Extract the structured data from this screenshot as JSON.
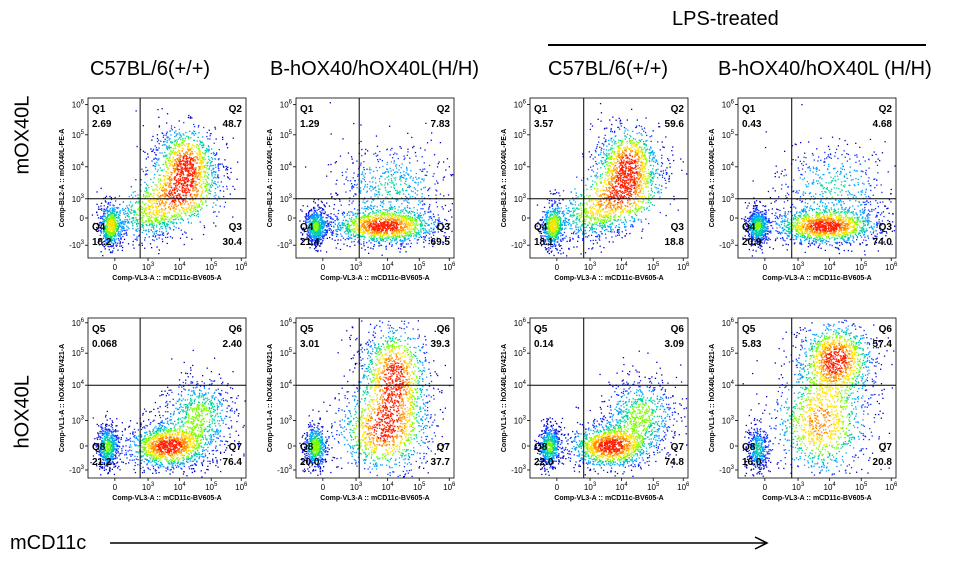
{
  "column_headers": [
    "C57BL/6(+/+)",
    "B-hOX40/hOX40L(H/H)",
    "C57BL/6(+/+)",
    "B-hOX40/hOX40L (H/H)"
  ],
  "group_label": "LPS-treated",
  "row_labels": [
    "mOX40L",
    "hOX40L"
  ],
  "bottom_axis_label": "mCD11c",
  "chart_data": [
    {
      "type": "scatter",
      "row": 0,
      "col": 0,
      "xlabel": "Comp-VL3-A :: mCD11c-BV605-A",
      "ylabel": "Comp-BL2-A :: mOX40L-PE-A",
      "quadrants": [
        {
          "name": "Q1",
          "value": "2.69"
        },
        {
          "name": "Q2",
          "value": "48.7"
        },
        {
          "name": "Q3",
          "value": "30.4"
        },
        {
          "name": "Q4",
          "value": "18.2"
        }
      ],
      "x_ticks": [
        "0",
        "10",
        "10",
        "10",
        "10"
      ],
      "x_tick_exp": [
        "",
        "3",
        "4",
        "5",
        "6"
      ],
      "y_ticks": [
        "-10",
        "0",
        "10",
        "10",
        "10",
        "10"
      ],
      "y_tick_exp": [
        "3",
        "",
        "3",
        "4",
        "5",
        "6"
      ],
      "population": "diagonal"
    },
    {
      "type": "scatter",
      "row": 0,
      "col": 1,
      "xlabel": "Comp-VL3-A :: mCD11c-BV605-A",
      "ylabel": "Comp-BL2-A :: mOX40L-PE-A",
      "quadrants": [
        {
          "name": "Q1",
          "value": "1.29"
        },
        {
          "name": "Q2",
          "value": "7.83"
        },
        {
          "name": "Q3",
          "value": "69.5"
        },
        {
          "name": "Q4",
          "value": "21.4"
        }
      ],
      "x_ticks": [
        "0",
        "10",
        "10",
        "10",
        "10"
      ],
      "x_tick_exp": [
        "",
        "3",
        "4",
        "5",
        "6"
      ],
      "y_ticks": [
        "-10",
        "0",
        "10",
        "10",
        "10",
        "10"
      ],
      "y_tick_exp": [
        "3",
        "",
        "3",
        "4",
        "5",
        "6"
      ],
      "population": "horizontal"
    },
    {
      "type": "scatter",
      "row": 0,
      "col": 2,
      "xlabel": "Comp-VL3-A :: mCD11c-BV605-A",
      "ylabel": "Comp-BL2-A :: mOX40L-PE-A",
      "quadrants": [
        {
          "name": "Q1",
          "value": "3.57"
        },
        {
          "name": "Q2",
          "value": "59.6"
        },
        {
          "name": "Q3",
          "value": "18.8"
        },
        {
          "name": "Q4",
          "value": "18.1"
        }
      ],
      "x_ticks": [
        "0",
        "10",
        "10",
        "10",
        "10"
      ],
      "x_tick_exp": [
        "",
        "3",
        "4",
        "5",
        "6"
      ],
      "y_ticks": [
        "-10",
        "0",
        "10",
        "10",
        "10",
        "10"
      ],
      "y_tick_exp": [
        "3",
        "",
        "3",
        "4",
        "5",
        "6"
      ],
      "population": "diagonal"
    },
    {
      "type": "scatter",
      "row": 0,
      "col": 3,
      "xlabel": "Comp-VL3-A :: mCD11c-BV605-A",
      "ylabel": "Comp-BL2-A :: mOX40L-PE-A",
      "quadrants": [
        {
          "name": "Q1",
          "value": "0.43"
        },
        {
          "name": "Q2",
          "value": "4.68"
        },
        {
          "name": "Q3",
          "value": "74.0"
        },
        {
          "name": "Q4",
          "value": "20.9"
        }
      ],
      "x_ticks": [
        "0",
        "10",
        "10",
        "10",
        "10"
      ],
      "x_tick_exp": [
        "",
        "3",
        "4",
        "5",
        "6"
      ],
      "y_ticks": [
        "-10",
        "0",
        "10",
        "10",
        "10",
        "10"
      ],
      "y_tick_exp": [
        "3",
        "",
        "3",
        "4",
        "5",
        "6"
      ],
      "population": "horizontal"
    },
    {
      "type": "scatter",
      "row": 1,
      "col": 0,
      "xlabel": "Comp-VL3-A :: mCD11c-BV605-A",
      "ylabel": "Comp-VL1-A :: hOX40L-BV421-A",
      "quadrants": [
        {
          "name": "Q5",
          "value": "0.068"
        },
        {
          "name": "Q6",
          "value": "2.40"
        },
        {
          "name": "Q7",
          "value": "76.4"
        },
        {
          "name": "Q8",
          "value": "21.2"
        }
      ],
      "x_ticks": [
        "0",
        "10",
        "10",
        "10",
        "10"
      ],
      "x_tick_exp": [
        "",
        "3",
        "4",
        "5",
        "6"
      ],
      "y_ticks": [
        "-10",
        "0",
        "10",
        "10",
        "10",
        "10"
      ],
      "y_tick_exp": [
        "3",
        "",
        "3",
        "4",
        "5",
        "6"
      ],
      "population": "low"
    },
    {
      "type": "scatter",
      "row": 1,
      "col": 1,
      "xlabel": "Comp-VL3-A :: mCD11c-BV605-A",
      "ylabel": "Comp-VL1-A :: hOX40L-BV421-A",
      "quadrants": [
        {
          "name": "Q5",
          "value": "3.01"
        },
        {
          "name": "Q6",
          "value": "39.3"
        },
        {
          "name": "Q7",
          "value": "37.7"
        },
        {
          "name": "Q8",
          "value": "20.0"
        }
      ],
      "x_ticks": [
        "0",
        "10",
        "10",
        "10",
        "10"
      ],
      "x_tick_exp": [
        "",
        "3",
        "4",
        "5",
        "6"
      ],
      "y_ticks": [
        "-10",
        "0",
        "10",
        "10",
        "10",
        "10"
      ],
      "y_tick_exp": [
        "3",
        "",
        "3",
        "4",
        "5",
        "6"
      ],
      "population": "vertical"
    },
    {
      "type": "scatter",
      "row": 1,
      "col": 2,
      "xlabel": "Comp-VL3-A :: mCD11c-BV605-A",
      "ylabel": "Comp-VL1-A :: hOX40L-BV421-A",
      "quadrants": [
        {
          "name": "Q5",
          "value": "0.14"
        },
        {
          "name": "Q6",
          "value": "3.09"
        },
        {
          "name": "Q7",
          "value": "74.8"
        },
        {
          "name": "Q8",
          "value": "22.0"
        }
      ],
      "x_ticks": [
        "0",
        "10",
        "10",
        "10",
        "10"
      ],
      "x_tick_exp": [
        "",
        "3",
        "4",
        "5",
        "6"
      ],
      "y_ticks": [
        "-10",
        "0",
        "10",
        "10",
        "10",
        "10"
      ],
      "y_tick_exp": [
        "3",
        "",
        "3",
        "4",
        "5",
        "6"
      ],
      "population": "low"
    },
    {
      "type": "scatter",
      "row": 1,
      "col": 3,
      "xlabel": "Comp-VL3-A :: mCD11c-BV605-A",
      "ylabel": "Comp-VL1-A :: hOX40L-BV421-A",
      "quadrants": [
        {
          "name": "Q5",
          "value": "5.83"
        },
        {
          "name": "Q6",
          "value": "57.4"
        },
        {
          "name": "Q7",
          "value": "20.8"
        },
        {
          "name": "Q8",
          "value": "16.0"
        }
      ],
      "x_ticks": [
        "0",
        "10",
        "10",
        "10",
        "10"
      ],
      "x_tick_exp": [
        "",
        "3",
        "4",
        "5",
        "6"
      ],
      "y_ticks": [
        "-10",
        "0",
        "10",
        "10",
        "10",
        "10"
      ],
      "y_tick_exp": [
        "3",
        "",
        "3",
        "4",
        "5",
        "6"
      ],
      "population": "high"
    }
  ]
}
